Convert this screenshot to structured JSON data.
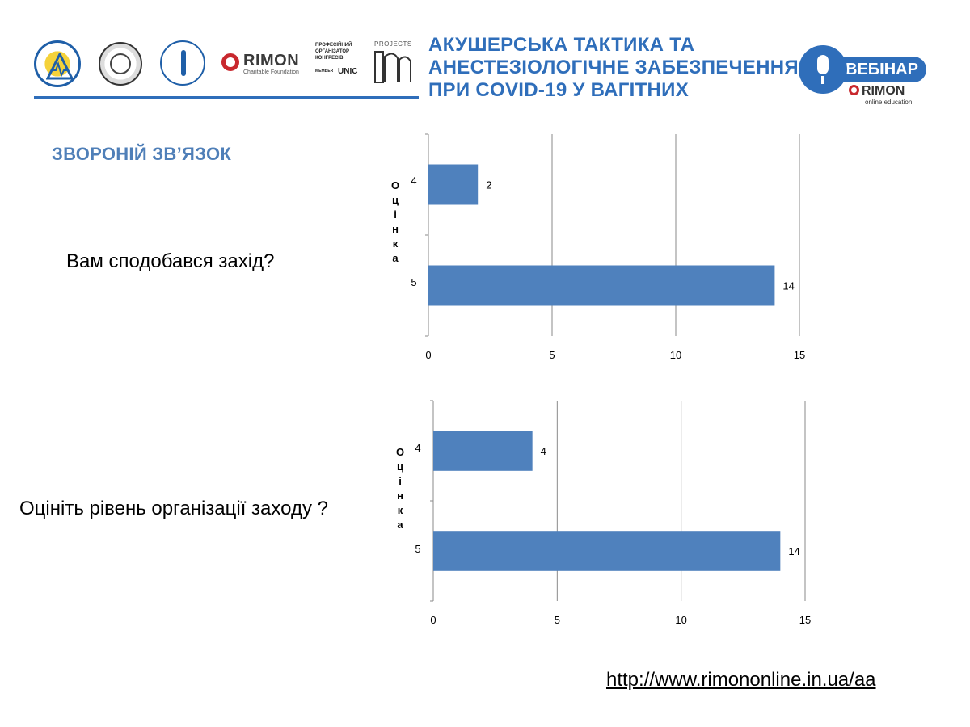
{
  "header": {
    "title_lines": [
      "АКУШЕРСЬКА ТАКТИКА ТА",
      "АНЕСТЕЗІОЛОГІЧНЕ ЗАБЕЗПЕЧЕННЯ",
      "ПРИ COVID-19 У ВАГІТНИХ"
    ],
    "rimon_logo": {
      "word": "RIMON",
      "sub": "Charitable Foundation"
    },
    "organizer_logo": {
      "lines": [
        "ПРОФЕСІЙНИЙ",
        "ОРГАНІЗАТОР",
        "КОНГРЕСІВ"
      ],
      "member": "MEMBER",
      "brand": "UNIC"
    },
    "projects_logo": {
      "word": "PROJECTS"
    },
    "webinar_badge": {
      "label": "ВЕБІНАР",
      "brand": "RIMON",
      "sub": "online education"
    },
    "colors": {
      "accent": "#2f6eba",
      "rimon_red": "#c8282e"
    }
  },
  "section_heading": "ЗВОРОНІЙ ЗВ’ЯЗОК",
  "questions": [
    "Вам сподобався захід?",
    "Оцініть рівень організації заходу ?"
  ],
  "chart_data": [
    {
      "type": "bar",
      "orientation": "horizontal",
      "categories": [
        "4",
        "5"
      ],
      "values": [
        2,
        14
      ],
      "data_labels": [
        "2",
        "14"
      ],
      "title": "",
      "xlabel": "",
      "ylabel": "Оцінка",
      "xlim": [
        0,
        15
      ],
      "x_ticks": [
        0,
        5,
        10,
        15
      ],
      "grid": "vertical",
      "bar_color": "#4f81bd"
    },
    {
      "type": "bar",
      "orientation": "horizontal",
      "categories": [
        "4",
        "5"
      ],
      "values": [
        4,
        14
      ],
      "data_labels": [
        "4",
        "14"
      ],
      "title": "",
      "xlabel": "",
      "ylabel": "Оцінка",
      "xlim": [
        0,
        15
      ],
      "x_ticks": [
        0,
        5,
        10,
        15
      ],
      "grid": "vertical",
      "bar_color": "#4f81bd"
    }
  ],
  "footer": {
    "url": "http://www.rimononline.in.ua/aa"
  }
}
